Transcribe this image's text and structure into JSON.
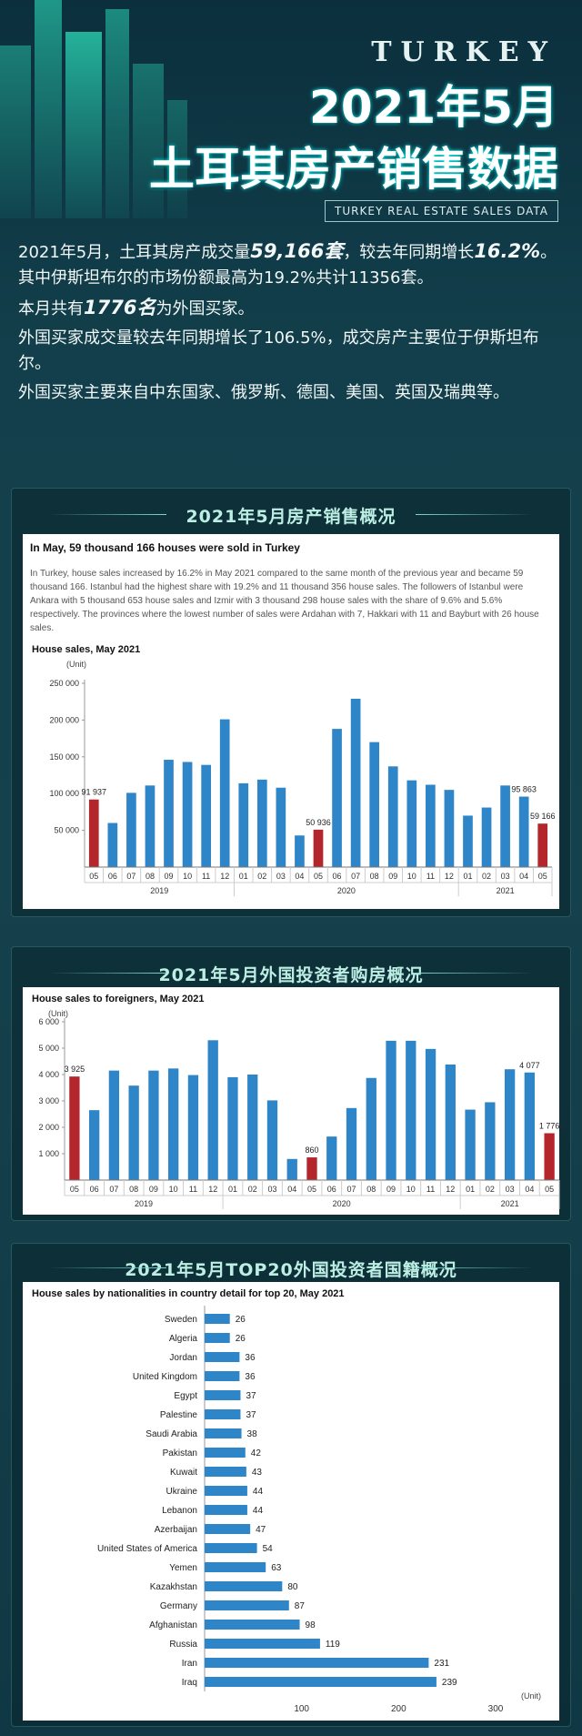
{
  "hero": {
    "kicker": "TURKEY",
    "title_line1": "2021年5月",
    "title_line2": "土耳其房产销售数据",
    "subtitle": "TURKEY REAL ESTATE SALES  DATA"
  },
  "intro": {
    "p1_a": "2021年5月，土耳其房产成交量",
    "p1_em1": "59,166套",
    "p1_b": "，较去年同期增长",
    "p1_em2": "16.2%",
    "p1_c": "。其中伊斯坦布尔的市场份额最高为19.2%共计11356套。",
    "p2_a": "本月共有",
    "p2_em": "1776名",
    "p2_b": "为外国买家。",
    "p3": "外国买家成交量较去年同期增长了106.5%，成交房产主要位于伊斯坦布尔。",
    "p4": "外国买家主要来自中东国家、俄罗斯、德国、美国、英国及瑞典等。"
  },
  "panel1": {
    "title": "2021年5月房产销售概况",
    "headline": "In May, 59 thousand 166 houses were sold in Turkey",
    "body": "In Turkey, house sales increased by 16.2% in May 2021 compared to the same month of the previous year and became 59 thousand 166. Istanbul had the highest share with 19.2% and 11 thousand 356 house sales. The followers of Istanbul were Ankara with 5 thousand 653 house sales and Izmir with 3 thousand 298 house sales with the share of 9.6% and 5.6% respectively. The provinces where the lowest number of sales were Ardahan with 7, Hakkari with 11 and Bayburt with 26 house sales."
  },
  "panel2": {
    "title": "2021年5月外国投资者购房概况"
  },
  "panel3": {
    "title": "2021年5月TOP20外国投资者国籍概况"
  },
  "colors": {
    "bar": "#2e86c8",
    "highlight": "#b3262b"
  },
  "chart_data": [
    {
      "type": "bar",
      "title": "House sales, May 2021",
      "unit": "(Unit)",
      "categories": [
        "05",
        "06",
        "07",
        "08",
        "09",
        "10",
        "11",
        "12",
        "01",
        "02",
        "03",
        "04",
        "05",
        "06",
        "07",
        "08",
        "09",
        "10",
        "11",
        "12",
        "01",
        "02",
        "03",
        "04",
        "05"
      ],
      "years": [
        {
          "label": "2019",
          "from": 0,
          "to": 7
        },
        {
          "label": "2020",
          "from": 8,
          "to": 19
        },
        {
          "label": "2021",
          "from": 20,
          "to": 24
        }
      ],
      "values": [
        91937,
        60000,
        101000,
        111000,
        146000,
        143000,
        139000,
        201000,
        114000,
        119000,
        108000,
        43000,
        50936,
        188000,
        229000,
        170000,
        137000,
        118000,
        112000,
        105000,
        70000,
        81000,
        111000,
        95863,
        59166
      ],
      "highlight": [
        0,
        12,
        24
      ],
      "data_labels": {
        "0": "91 937",
        "12": "50 936",
        "23": "95 863",
        "24": "59 166"
      },
      "ylim": [
        0,
        250000
      ],
      "yticks": [
        "50 000",
        "100 000",
        "150 000",
        "200 000",
        "250 000"
      ],
      "ytick_values": [
        50000,
        100000,
        150000,
        200000,
        250000
      ]
    },
    {
      "type": "bar",
      "title": "House sales to foreigners, May 2021",
      "unit": "(Unit)",
      "categories": [
        "05",
        "06",
        "07",
        "08",
        "09",
        "10",
        "11",
        "12",
        "01",
        "02",
        "03",
        "04",
        "05",
        "06",
        "07",
        "08",
        "09",
        "10",
        "11",
        "12",
        "01",
        "02",
        "03",
        "04",
        "05"
      ],
      "years": [
        {
          "label": "2019",
          "from": 0,
          "to": 7
        },
        {
          "label": "2020",
          "from": 8,
          "to": 19
        },
        {
          "label": "2021",
          "from": 20,
          "to": 24
        }
      ],
      "values": [
        3925,
        2650,
        4150,
        3580,
        4150,
        4230,
        3980,
        5300,
        3900,
        4000,
        3020,
        800,
        860,
        1650,
        2730,
        3870,
        5280,
        5280,
        4970,
        4380,
        2670,
        2950,
        4200,
        4077,
        1776
      ],
      "highlight": [
        0,
        12,
        24
      ],
      "data_labels": {
        "0": "3 925",
        "12": "860",
        "23": "4 077",
        "24": "1 776"
      },
      "ylim": [
        0,
        6000
      ],
      "yticks": [
        "1 000",
        "2 000",
        "3 000",
        "4 000",
        "5 000",
        "6 000"
      ],
      "ytick_values": [
        1000,
        2000,
        3000,
        4000,
        5000,
        6000
      ]
    },
    {
      "type": "bar",
      "orientation": "horizontal",
      "title": "House sales by nationalities in country detail for top 20, May 2021",
      "unit": "(Unit)",
      "categories": [
        "Sweden",
        "Algeria",
        "Jordan",
        "United Kingdom",
        "Egypt",
        "Palestine",
        "Saudi Arabia",
        "Pakistan",
        "Kuwait",
        "Ukraine",
        "Lebanon",
        "Azerbaijan",
        "United States of America",
        "Yemen",
        "Kazakhstan",
        "Germany",
        "Afghanistan",
        "Russia",
        "Iran",
        "Iraq"
      ],
      "values": [
        26,
        26,
        36,
        36,
        37,
        37,
        38,
        42,
        43,
        44,
        44,
        47,
        54,
        63,
        80,
        87,
        98,
        119,
        231,
        239
      ],
      "xlim": [
        0,
        300
      ],
      "xticks": [
        "100",
        "200",
        "300"
      ],
      "xtick_values": [
        100,
        200,
        300
      ]
    }
  ]
}
